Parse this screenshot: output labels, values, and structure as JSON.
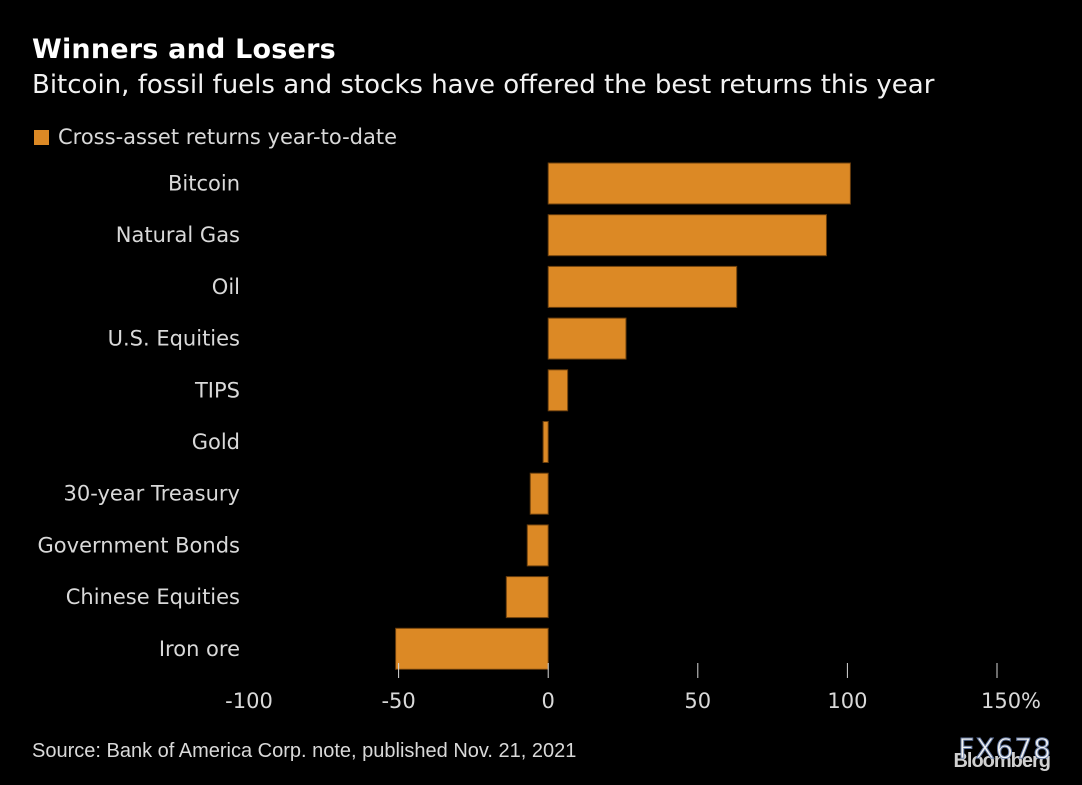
{
  "chart_data": {
    "type": "bar",
    "orientation": "horizontal",
    "title": "Winners and Losers",
    "subtitle": "Bitcoin, fossil fuels and stocks have offered the best returns this year",
    "legend": [
      {
        "name": "Cross-asset returns year-to-date",
        "color": "#dc8925"
      }
    ],
    "legend_position": "top-left",
    "categories": [
      "Bitcoin",
      "Natural Gas",
      "Oil",
      "U.S. Equities",
      "TIPS",
      "Gold",
      "30-year Treasury",
      "Government Bonds",
      "Chinese Equities",
      "Iron ore"
    ],
    "series": [
      {
        "name": "Cross-asset returns year-to-date",
        "values": [
          101,
          93,
          63,
          26,
          6.5,
          -1.7,
          -6,
          -7,
          -14,
          -51
        ]
      }
    ],
    "xlim": [
      -100,
      150
    ],
    "xticks": [
      -100,
      -50,
      0,
      50,
      100,
      150
    ],
    "xtick_labels": [
      "-100",
      "-50",
      "0",
      "50",
      "100",
      "150%"
    ],
    "xlabel": "",
    "ylabel": "",
    "grid": false,
    "bar_color": "#dc8925",
    "source": "Source: Bank of America Corp. note, published Nov. 21, 2021"
  },
  "watermark": {
    "brand": "Bloomberg",
    "overlay": "FX678"
  }
}
